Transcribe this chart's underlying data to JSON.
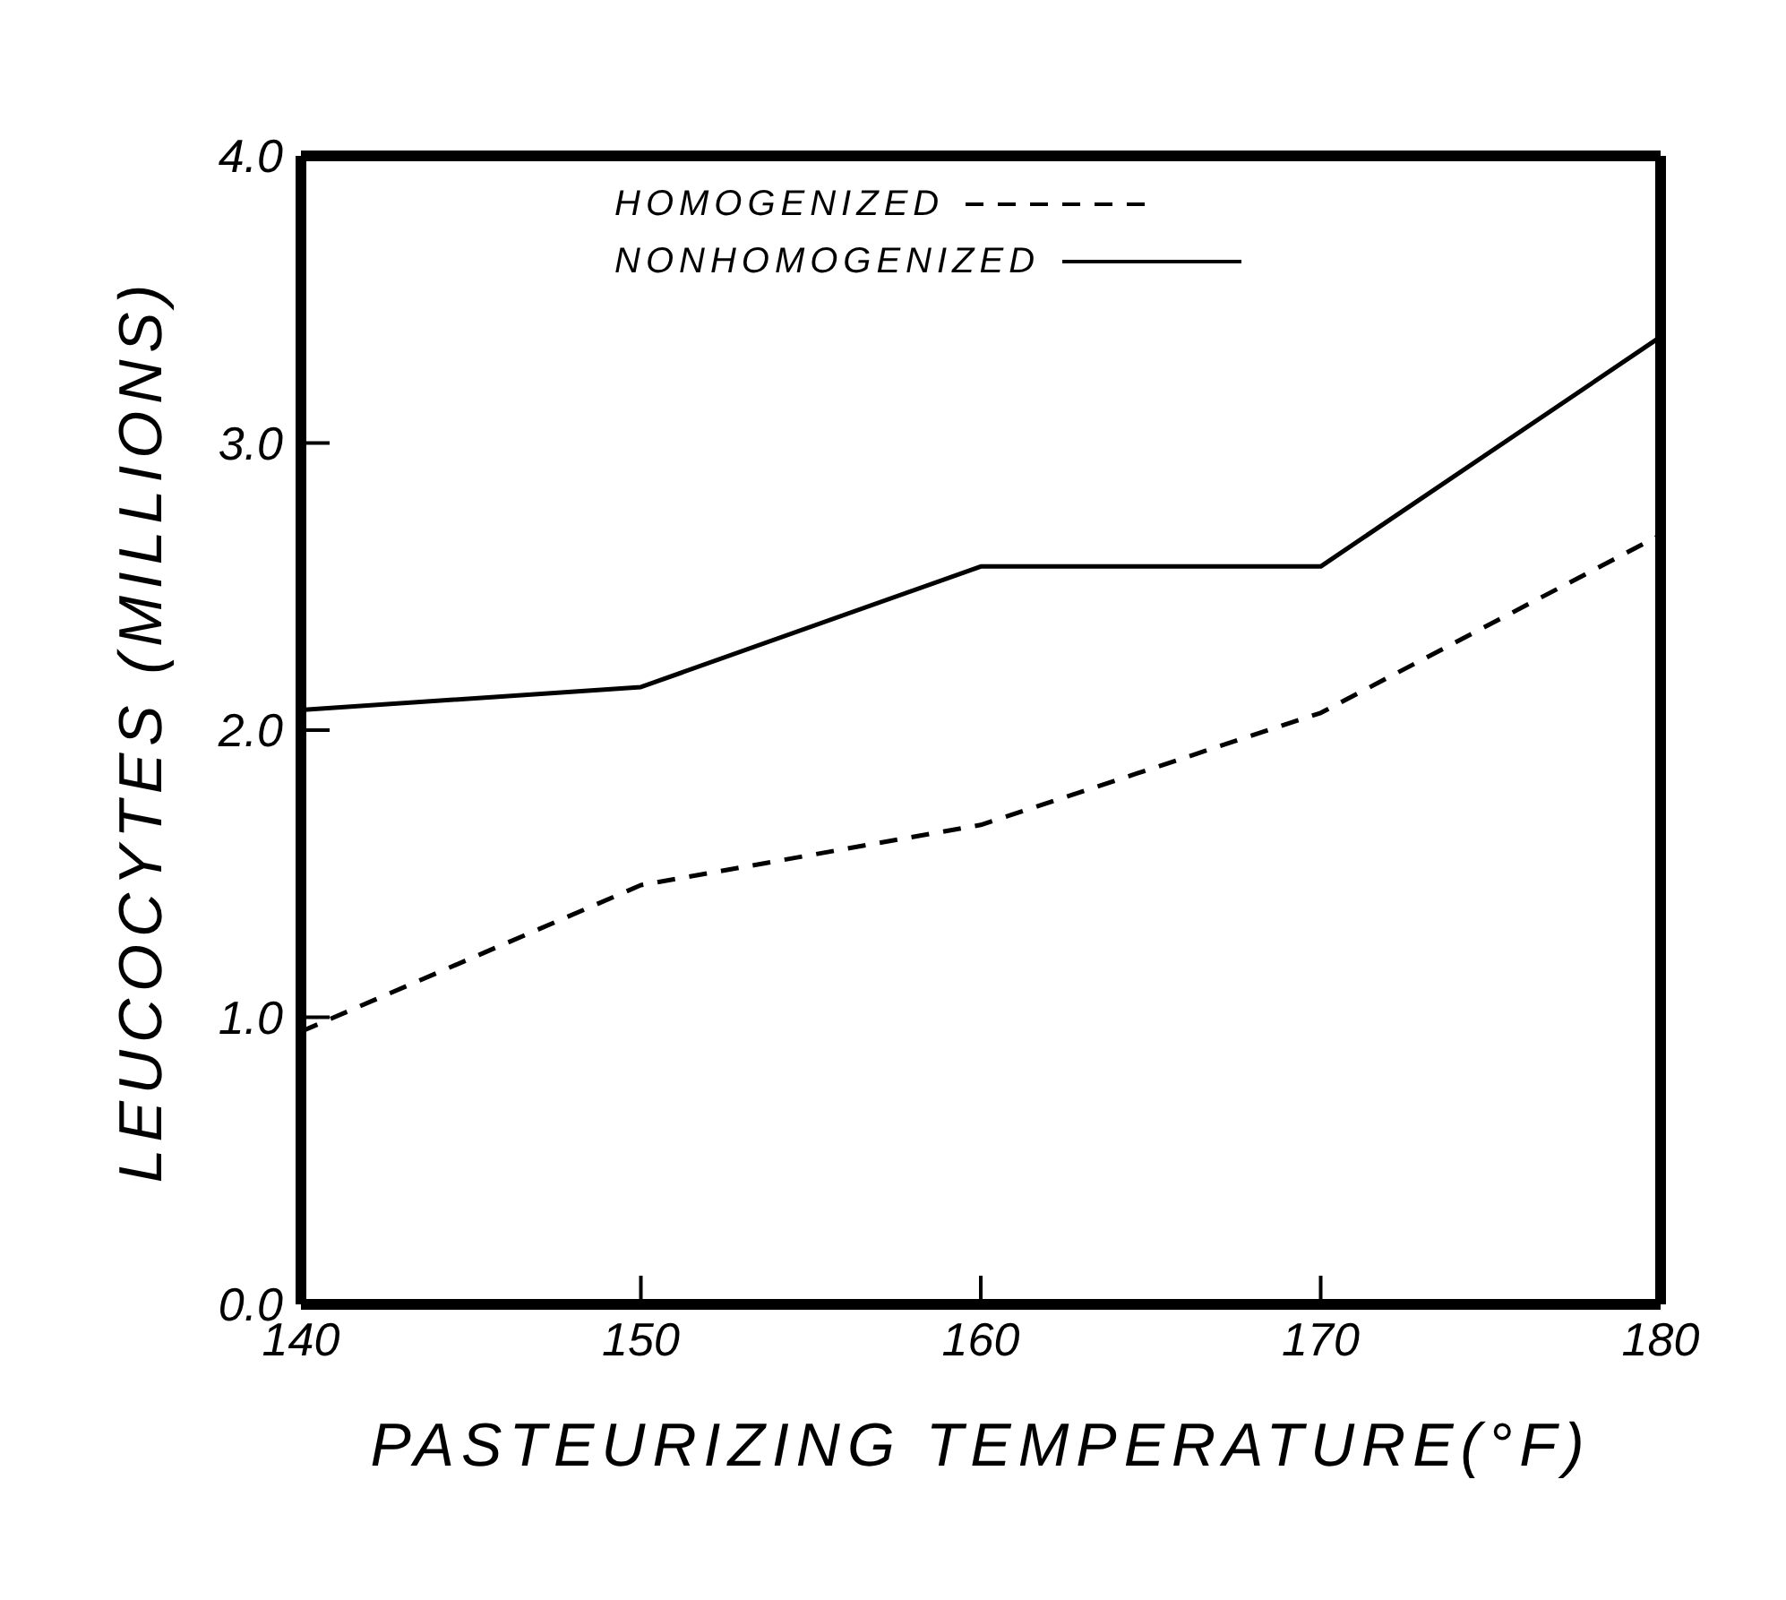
{
  "chart_data": {
    "type": "line",
    "xlabel": "PASTEURIZING TEMPERATURE(°F)",
    "ylabel": "LEUCOCYTES (MILLIONS)",
    "x": [
      140,
      150,
      160,
      170,
      180
    ],
    "series": [
      {
        "name": "HOMOGENIZED",
        "color": "#000000",
        "line_style": "dashed",
        "values": [
          0.95,
          1.46,
          1.67,
          2.06,
          2.68
        ]
      },
      {
        "name": "NONHOMOGENIZED",
        "color": "#000000",
        "line_style": "solid",
        "values": [
          2.07,
          2.15,
          2.57,
          2.57,
          3.37
        ]
      }
    ],
    "xlim": [
      140,
      180
    ],
    "xticks": [
      140,
      150,
      160,
      170,
      180
    ],
    "ylim": [
      0,
      4
    ],
    "yticks": [
      {
        "value": 0,
        "label": "0.0"
      },
      {
        "value": 1,
        "label": "1.0"
      },
      {
        "value": 2,
        "label": "2.0"
      },
      {
        "value": 3,
        "label": "3.0"
      },
      {
        "value": 4,
        "label": "4.0"
      }
    ],
    "grid": false,
    "legend": "top",
    "marker": "none"
  }
}
